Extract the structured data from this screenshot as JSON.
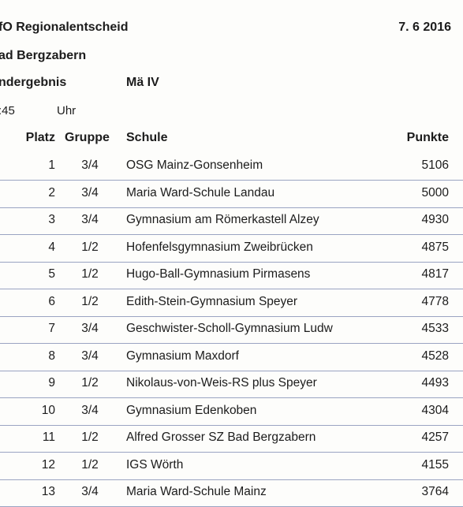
{
  "header": {
    "title_line1": "fO Regionalentscheid",
    "date": "7. 6 2016",
    "title_line2": "ad Bergzabern",
    "title_line3": "ndergebnis",
    "category": "Mä IV",
    "time": ":45",
    "time_unit": "Uhr"
  },
  "table": {
    "columns": [
      "Platz",
      "Gruppe",
      "Schule",
      "Punkte"
    ],
    "rows": [
      {
        "platz": "1",
        "gruppe": "3/4",
        "schule": "OSG Mainz-Gonsenheim",
        "punkte": "5106"
      },
      {
        "platz": "2",
        "gruppe": "3/4",
        "schule": "Maria Ward-Schule Landau",
        "punkte": "5000"
      },
      {
        "platz": "3",
        "gruppe": "3/4",
        "schule": "Gymnasium am Römerkastell Alzey",
        "punkte": "4930"
      },
      {
        "platz": "4",
        "gruppe": "1/2",
        "schule": "Hofenfelsgymnasium Zweibrücken",
        "punkte": "4875"
      },
      {
        "platz": "5",
        "gruppe": "1/2",
        "schule": "Hugo-Ball-Gymnasium Pirmasens",
        "punkte": "4817"
      },
      {
        "platz": "6",
        "gruppe": "1/2",
        "schule": "Edith-Stein-Gymnasium Speyer",
        "punkte": "4778"
      },
      {
        "platz": "7",
        "gruppe": "3/4",
        "schule": "Geschwister-Scholl-Gymnasium Ludw",
        "punkte": "4533"
      },
      {
        "platz": "8",
        "gruppe": "3/4",
        "schule": "Gymnasium Maxdorf",
        "punkte": "4528"
      },
      {
        "platz": "9",
        "gruppe": "1/2",
        "schule": "Nikolaus-von-Weis-RS plus Speyer",
        "punkte": "4493"
      },
      {
        "platz": "10",
        "gruppe": "3/4",
        "schule": "Gymnasium Edenkoben",
        "punkte": "4304"
      },
      {
        "platz": "11",
        "gruppe": "1/2",
        "schule": "Alfred Grosser SZ Bad Bergzabern",
        "punkte": "4257"
      },
      {
        "platz": "12",
        "gruppe": "1/2",
        "schule": "IGS Wörth",
        "punkte": "4155"
      },
      {
        "platz": "13",
        "gruppe": "3/4",
        "schule": "Maria Ward-Schule Mainz",
        "punkte": "3764"
      }
    ]
  }
}
